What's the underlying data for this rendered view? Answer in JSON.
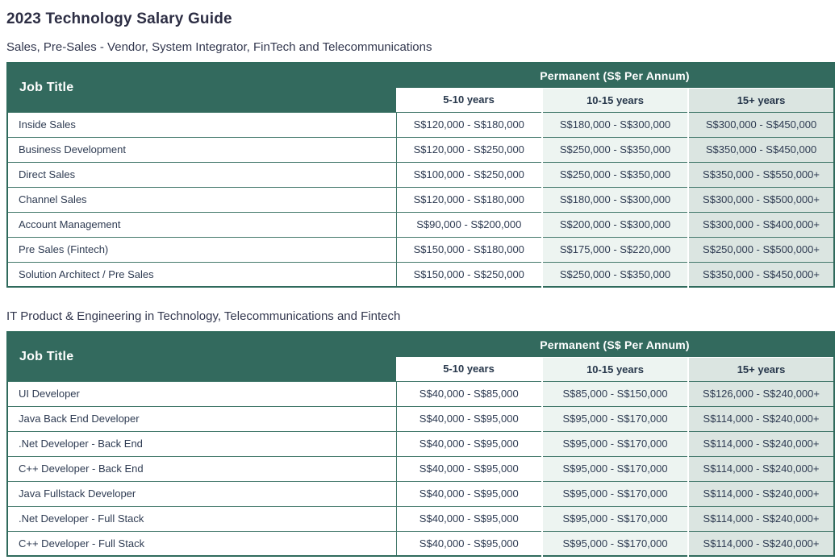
{
  "page": {
    "title": "2023 Technology Salary Guide"
  },
  "colors": {
    "header_green": "#336A5E",
    "row_border_green": "#44796C",
    "column_tint_mid": "#EDF4F1",
    "column_tint_dark": "#DBE5E1",
    "heading_text": "#2D2E44",
    "body_text": "#2E3B52",
    "header_text": "#FFFFFF"
  },
  "sections": [
    {
      "subtitle": "Sales, Pre-Sales - Vendor, System Integrator, FinTech and Telecommunications",
      "table": {
        "job_title_header": "Job Title",
        "group_header": "Permanent (S$ Per Annum)",
        "columns": [
          "5-10 years",
          "10-15 years",
          "15+ years"
        ],
        "rows": [
          [
            "Inside Sales",
            "S$120,000 - S$180,000",
            "S$180,000 - S$300,000",
            "S$300,000 - S$450,000"
          ],
          [
            "Business Development",
            "S$120,000 - S$250,000",
            "S$250,000 - S$350,000",
            "S$350,000 - S$450,000"
          ],
          [
            "Direct Sales",
            "S$100,000 - S$250,000",
            "S$250,000 - S$350,000",
            "S$350,000 - S$550,000+"
          ],
          [
            "Channel Sales",
            "S$120,000 - S$180,000",
            "S$180,000 - S$300,000",
            "S$300,000 - S$500,000+"
          ],
          [
            "Account Management",
            "S$90,000 - S$200,000",
            "S$200,000 - S$300,000",
            "S$300,000 - S$400,000+"
          ],
          [
            "Pre Sales (Fintech)",
            "S$150,000 - S$180,000",
            "S$175,000 - S$220,000",
            "S$250,000 - S$500,000+"
          ],
          [
            "Solution Architect / Pre Sales",
            "S$150,000 - S$250,000",
            "S$250,000 - S$350,000",
            "S$350,000 - S$450,000+"
          ]
        ]
      }
    },
    {
      "subtitle": "IT Product & Engineering in Technology, Telecommunications and Fintech",
      "table": {
        "job_title_header": "Job Title",
        "group_header": "Permanent (S$ Per Annum)",
        "columns": [
          "5-10 years",
          "10-15 years",
          "15+ years"
        ],
        "rows": [
          [
            "UI Developer",
            "S$40,000 - S$85,000",
            "S$85,000 - S$150,000",
            "S$126,000 - S$240,000+"
          ],
          [
            "Java Back End Developer",
            "S$40,000 - S$95,000",
            "S$95,000 - S$170,000",
            "S$114,000 - S$240,000+"
          ],
          [
            ".Net Developer - Back End",
            "S$40,000 - S$95,000",
            "S$95,000 - S$170,000",
            "S$114,000 - S$240,000+"
          ],
          [
            "C++ Developer - Back End",
            "S$40,000 - S$95,000",
            "S$95,000 - S$170,000",
            "S$114,000 - S$240,000+"
          ],
          [
            "Java Fullstack Developer",
            "S$40,000 - S$95,000",
            "S$95,000 - S$170,000",
            "S$114,000 - S$240,000+"
          ],
          [
            ".Net Developer - Full Stack",
            "S$40,000 - S$95,000",
            "S$95,000 - S$170,000",
            "S$114,000 - S$240,000+"
          ],
          [
            "C++ Developer - Full Stack",
            "S$40,000 - S$95,000",
            "S$95,000 - S$170,000",
            "S$114,000 - S$240,000+"
          ]
        ]
      }
    }
  ]
}
